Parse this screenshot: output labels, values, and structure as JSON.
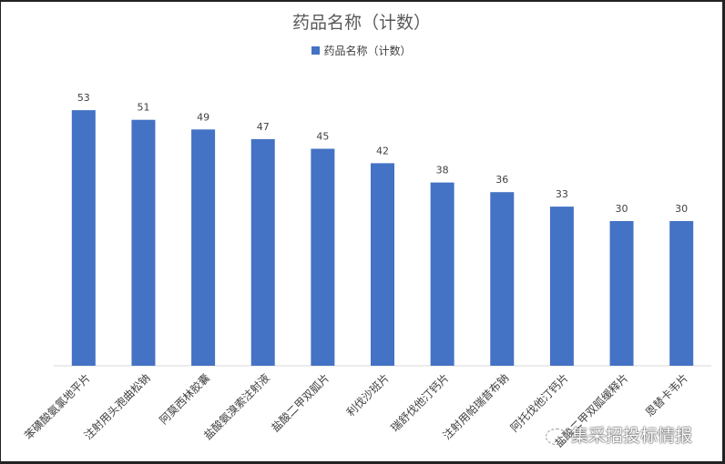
{
  "chart_data": {
    "type": "bar",
    "title": "药品名称（计数）",
    "legend": {
      "label": "药品名称（计数）",
      "placement": "top"
    },
    "categories": [
      "苯磺酸氨氯地平片",
      "注射用头孢曲松钠",
      "阿莫西林胶囊",
      "盐酸氨溴索注射液",
      "盐酸二甲双胍片",
      "利伐沙班片",
      "瑞舒伐他汀钙片",
      "注射用帕瑞昔布钠",
      "阿托伐他汀钙片",
      "盐酸二甲双胍缓释片",
      "恩替卡韦片"
    ],
    "series": [
      {
        "name": "药品名称（计数）",
        "values": [
          53,
          51,
          49,
          47,
          45,
          42,
          38,
          36,
          33,
          30,
          30
        ]
      }
    ],
    "ylim": [
      0,
      60
    ],
    "grid": false,
    "color": "#4472C4"
  },
  "watermark": {
    "text": "集采招投标情报",
    "icon": "wechat-icon"
  }
}
